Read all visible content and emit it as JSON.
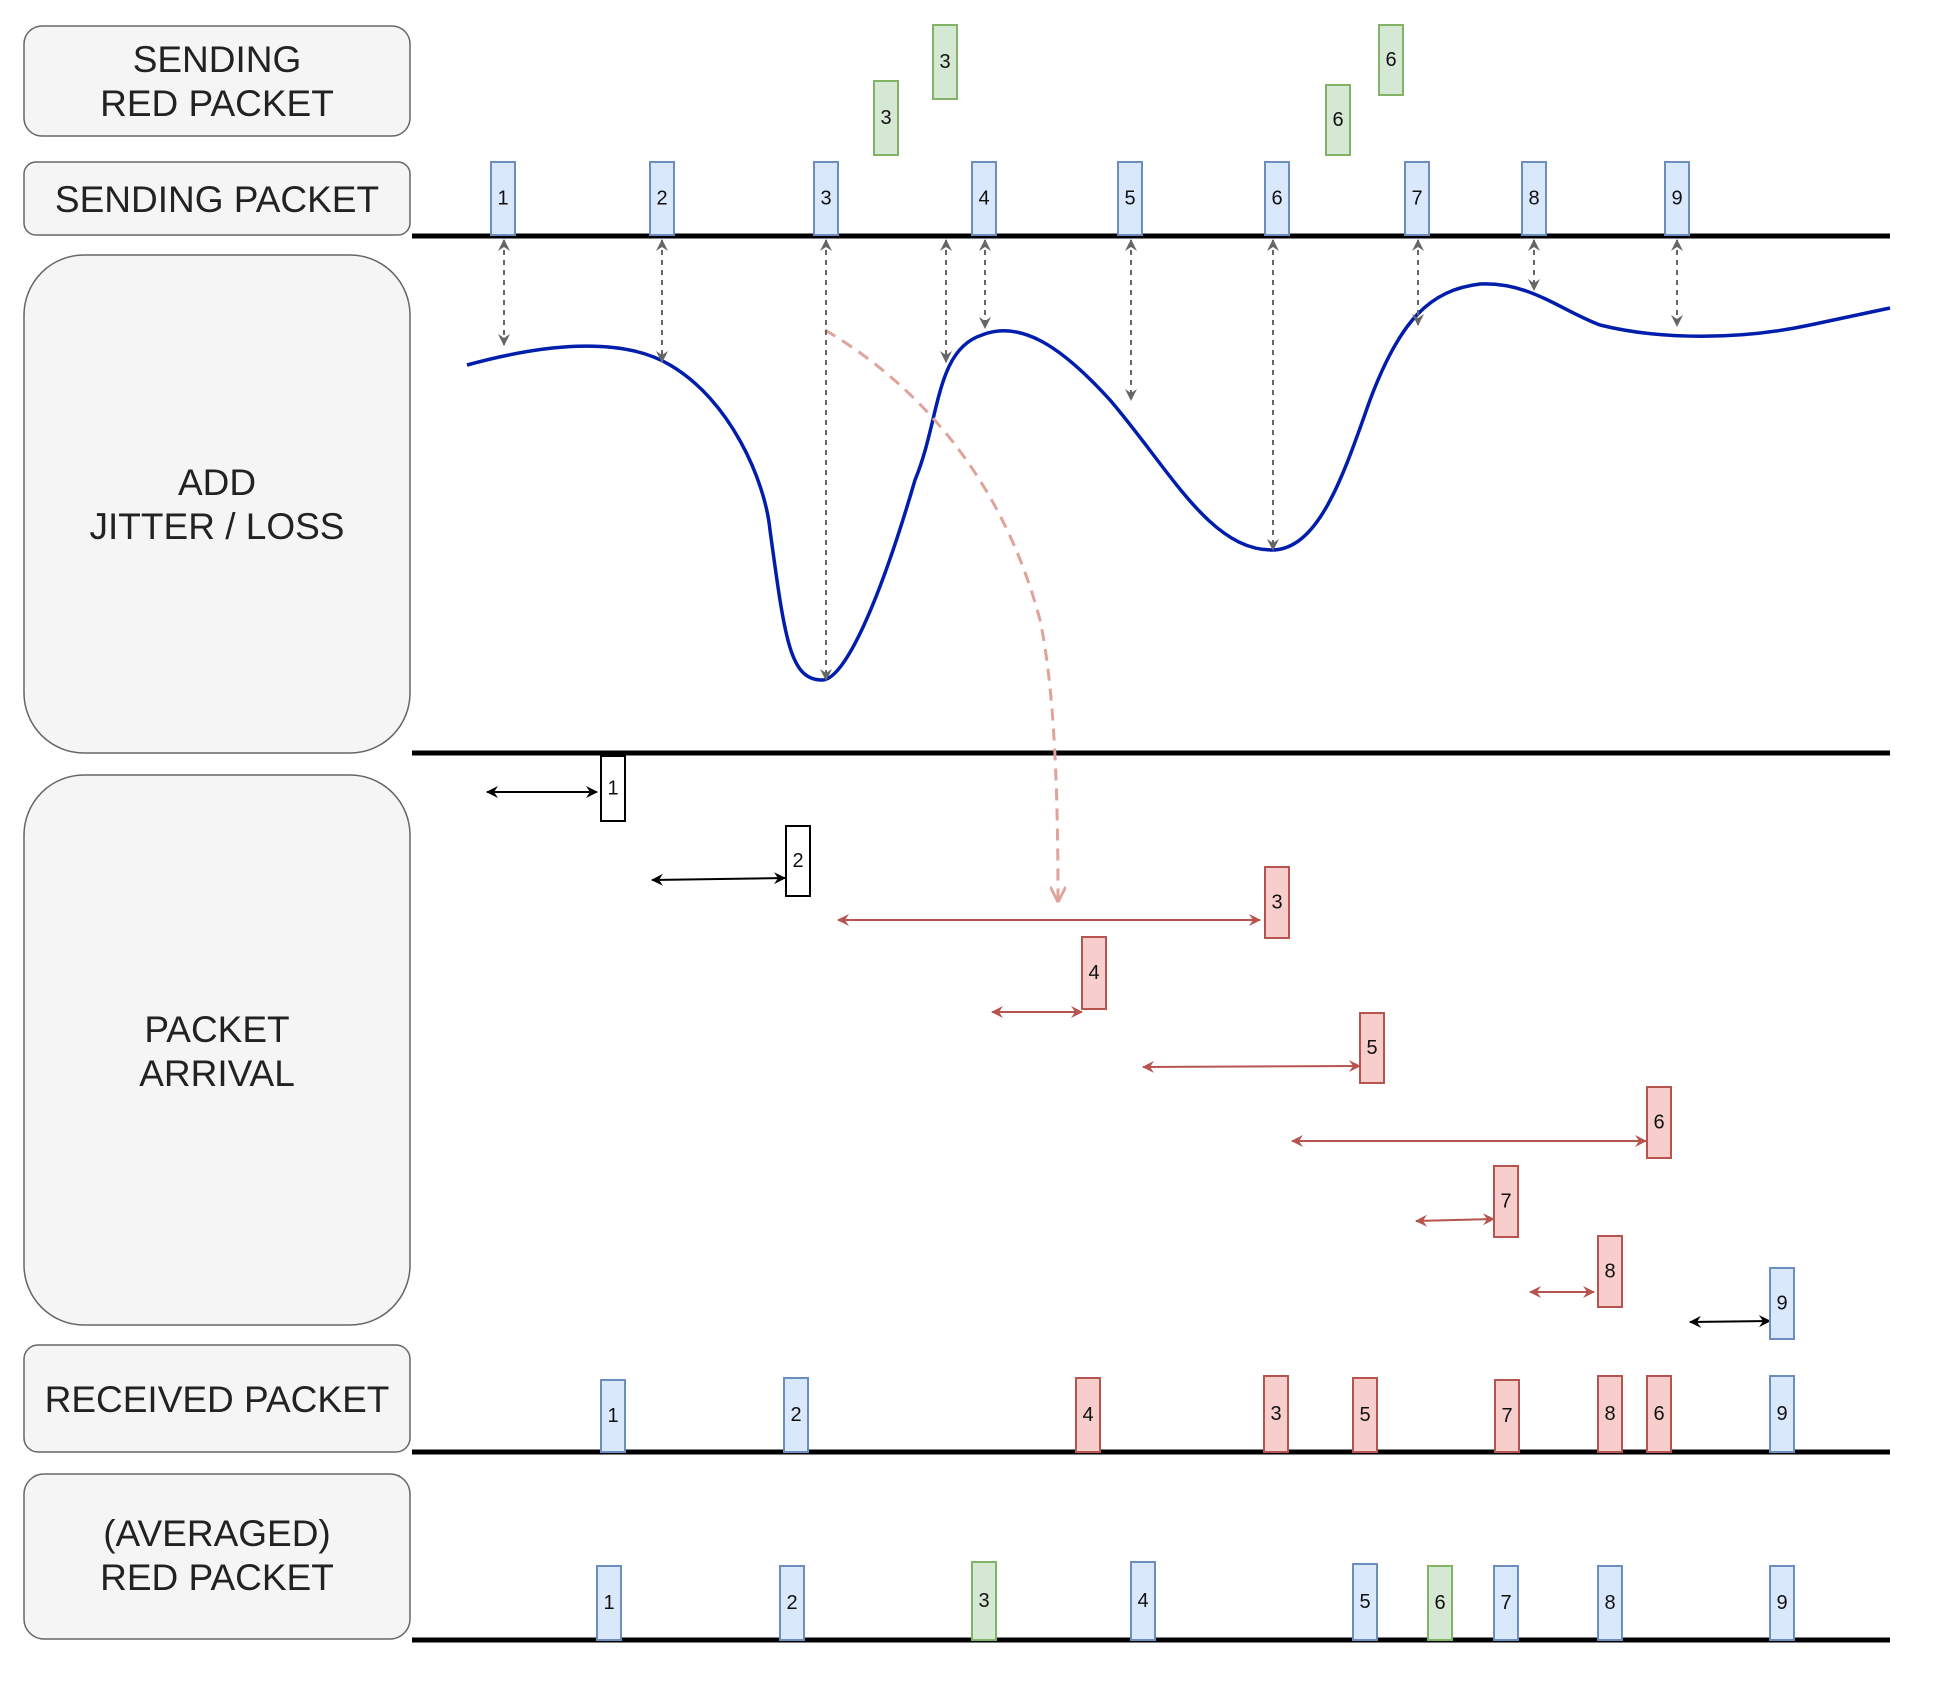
{
  "stages": {
    "sending_red": [
      "SENDING",
      "RED PACKET"
    ],
    "sending": [
      "SENDING PACKET"
    ],
    "jitter": [
      "ADD",
      "JITTER / LOSS"
    ],
    "arrival": [
      "PACKET",
      "ARRIVAL"
    ],
    "received": [
      "RECEIVED PACKET"
    ],
    "averaged": [
      "(AVERAGED)",
      "RED PACKET"
    ]
  },
  "colors": {
    "blue_fill": "#dae8fc",
    "blue_stroke": "#6c8ebf",
    "green_fill": "#d5e8d4",
    "green_stroke": "#82b366",
    "red_fill": "#f8cecc",
    "red_stroke": "#b85450",
    "white_fill": "#ffffff",
    "black_stroke": "#000000",
    "curve": "#001dab",
    "red_arrow": "#b85450",
    "gray_arrow": "#555555",
    "dashed_curve": "#e0a39c"
  },
  "packets": {
    "red_sent": [
      "3",
      "3",
      "6",
      "6"
    ],
    "sent": [
      "1",
      "2",
      "3",
      "4",
      "5",
      "6",
      "7",
      "8",
      "9"
    ],
    "arrival": [
      "1",
      "2",
      "3",
      "4",
      "5",
      "6",
      "7",
      "8",
      "9"
    ],
    "received": [
      "1",
      "2",
      "4",
      "3",
      "5",
      "7",
      "8",
      "6",
      "9"
    ],
    "averaged": [
      "1",
      "2",
      "3",
      "4",
      "5",
      "6",
      "7",
      "8",
      "9"
    ]
  }
}
